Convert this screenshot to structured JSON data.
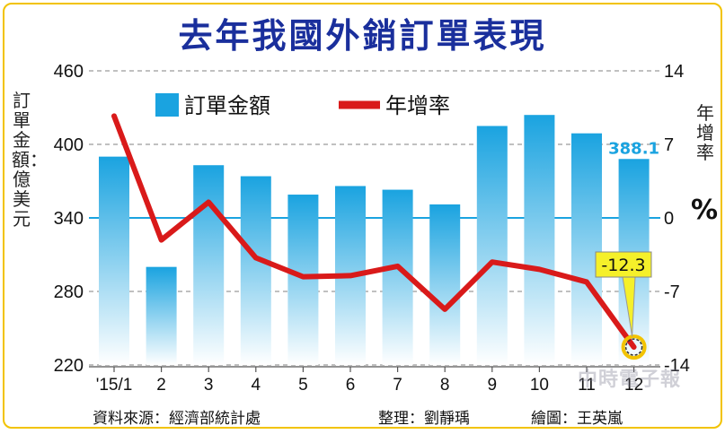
{
  "chart_data": {
    "type": "bar+line",
    "title": "去年我國外銷訂單表現",
    "categories": [
      "'15/1",
      "2",
      "3",
      "4",
      "5",
      "6",
      "7",
      "8",
      "9",
      "10",
      "11",
      "12"
    ],
    "series": [
      {
        "name": "訂單金額",
        "kind": "bar",
        "axis": "left",
        "values": [
          390,
          300,
          383,
          374,
          359,
          366,
          363,
          351,
          415,
          424,
          409,
          388.1
        ]
      },
      {
        "name": "年增率",
        "kind": "line",
        "axis": "right",
        "values": [
          9.7,
          -2.1,
          1.5,
          -3.8,
          -5.6,
          -5.5,
          -4.6,
          -8.7,
          -4.2,
          -4.9,
          -6.1,
          -12.3
        ]
      }
    ],
    "left_axis": {
      "label": "訂單金額：億美元",
      "ylim": [
        220,
        460
      ],
      "ticks": [
        "460",
        "400",
        "340",
        "280",
        "220"
      ]
    },
    "right_axis": {
      "label": "年增率",
      "unit": "%",
      "ylim": [
        -14,
        14
      ],
      "ticks": [
        "14",
        "7",
        "0",
        "-7",
        "-14"
      ]
    },
    "annotations": {
      "last_bar_value": "388.1",
      "last_growth_value": "-12.3"
    },
    "legend": {
      "position": "top-left",
      "items": [
        "訂單金額",
        "年增率"
      ]
    },
    "grid": true
  },
  "labels": {
    "title": "去年我國外銷訂單表現",
    "left_axis_label": "訂單金額：億美元",
    "right_axis_label": "年增率",
    "right_axis_unit": "%",
    "source": "資料來源：經濟部統計處",
    "compiler": "整理：劉靜瑀",
    "illustrator": "繪圖：王英嵐",
    "watermark": "中時電子報"
  },
  "colors": {
    "bar_top": "#1aa3e0",
    "bar_bottom": "#ffffff",
    "line": "#d91a1a",
    "title": "#1a2f9c",
    "annotation_box": "#f5f02a",
    "marker_ring": "#f2c300",
    "frame": "#f2c300"
  }
}
